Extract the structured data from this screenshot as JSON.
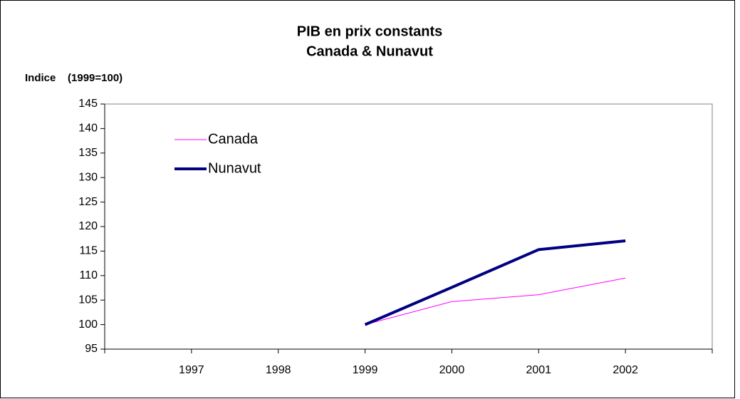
{
  "chart_data": {
    "type": "line",
    "title": [
      "PIB en prix constants",
      "Canada & Nunavut"
    ],
    "y_axis_label": "Indice    (1999=100)",
    "categories": [
      null,
      "1997",
      "1998",
      "1999",
      "2000",
      "2001",
      "2002",
      null
    ],
    "series": [
      {
        "name": "Canada",
        "color": "#ff00ff",
        "width": 1,
        "values": [
          null,
          null,
          null,
          100,
          104.7,
          106.1,
          109.5,
          null
        ]
      },
      {
        "name": "Nunavut",
        "color": "#000080",
        "width": 4,
        "values": [
          null,
          null,
          null,
          100,
          107.6,
          115.3,
          117.1,
          null
        ]
      }
    ],
    "ylim": [
      95,
      145
    ],
    "yticks": [
      95,
      100,
      105,
      110,
      115,
      120,
      125,
      130,
      135,
      140,
      145
    ],
    "grid": false,
    "legend": "upper-left"
  }
}
